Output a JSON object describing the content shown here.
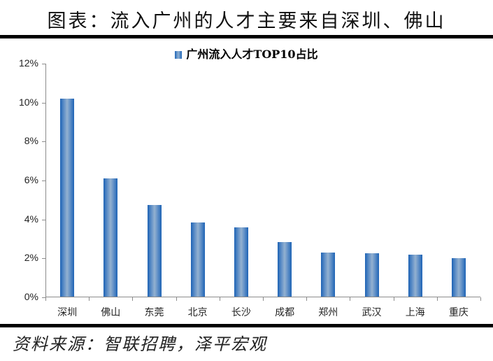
{
  "header": {
    "title": "图表：流入广州的人才主要来自深圳、佛山"
  },
  "footer": {
    "source": "资料来源：智联招聘，泽平宏观"
  },
  "colors": {
    "bar_dark": "#1d63b5",
    "bar_light": "#93b1d0",
    "axis": "#8c8c8c",
    "rule": "#000000"
  },
  "chart_data": {
    "type": "bar",
    "title": "",
    "legend": [
      "广州流入人才TOP10占比"
    ],
    "legend_position": "top",
    "categories": [
      "深圳",
      "佛山",
      "东莞",
      "北京",
      "长沙",
      "成都",
      "郑州",
      "武汉",
      "上海",
      "重庆"
    ],
    "series": [
      {
        "name": "广州流入人才TOP10占比",
        "values": [
          10.2,
          6.1,
          4.75,
          3.85,
          3.6,
          2.85,
          2.3,
          2.25,
          2.2,
          2.0
        ]
      }
    ],
    "xlabel": "",
    "ylabel": "",
    "ylim": [
      0,
      12
    ],
    "yticks": [
      "0%",
      "2%",
      "4%",
      "6%",
      "8%",
      "10%",
      "12%"
    ],
    "grid": false,
    "unit": "%"
  }
}
